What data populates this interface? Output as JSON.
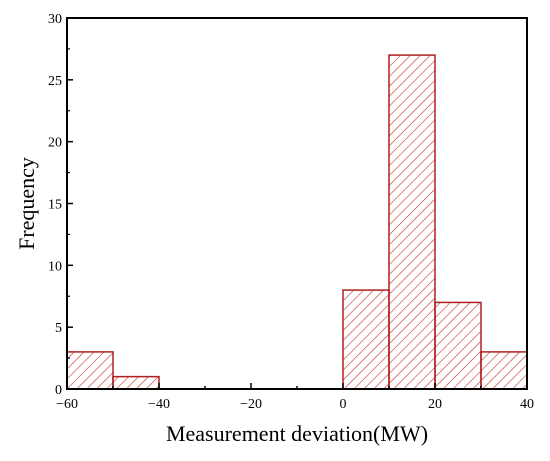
{
  "chart_data": {
    "type": "bar",
    "title": "",
    "xlabel": "Measurement deviation(MW)",
    "ylabel": "Frequency",
    "xlim": [
      -60,
      40
    ],
    "ylim": [
      0,
      30
    ],
    "x_ticks": [
      "-60",
      "-40",
      "-20",
      "0",
      "20",
      "40"
    ],
    "y_ticks": [
      "0",
      "5",
      "10",
      "15",
      "20",
      "25",
      "30"
    ],
    "bin_width": 10,
    "bins": [
      {
        "start": -60,
        "end": -50,
        "value": 3
      },
      {
        "start": -50,
        "end": -40,
        "value": 1
      },
      {
        "start": -40,
        "end": -30,
        "value": 0
      },
      {
        "start": -30,
        "end": -20,
        "value": 0
      },
      {
        "start": -20,
        "end": -10,
        "value": 0
      },
      {
        "start": -10,
        "end": 0,
        "value": 0
      },
      {
        "start": 0,
        "end": 10,
        "value": 8
      },
      {
        "start": 10,
        "end": 20,
        "value": 27
      },
      {
        "start": 20,
        "end": 30,
        "value": 7
      },
      {
        "start": 30,
        "end": 40,
        "value": 3
      }
    ],
    "bar_style": {
      "fill": "hatched",
      "stroke_color": "#b02020",
      "hatch_color": "#c83030"
    },
    "grid": false,
    "legend": "none"
  }
}
